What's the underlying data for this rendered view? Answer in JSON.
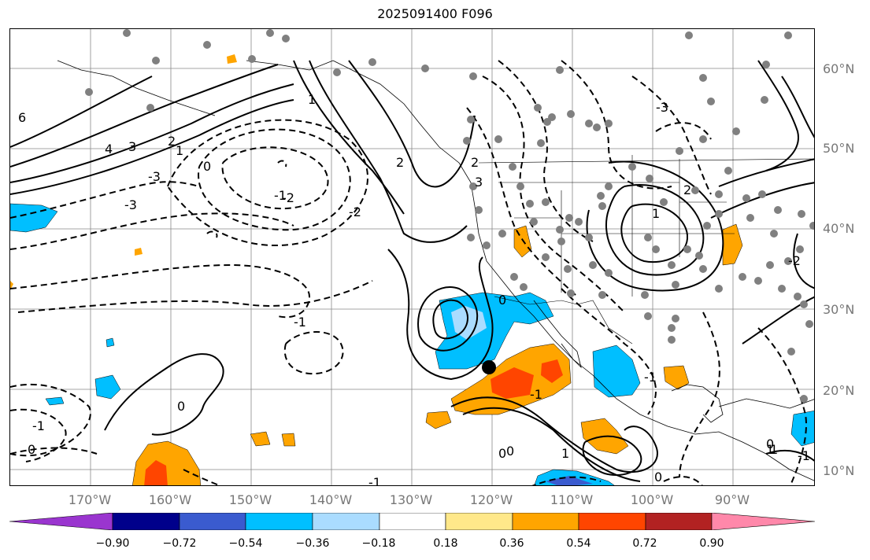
{
  "title": "2025091400 F096",
  "lat_labels": [
    "60°N",
    "50°N",
    "40°N",
    "30°N",
    "20°N",
    "10°N"
  ],
  "lon_labels": [
    "170°W",
    "160°W",
    "150°W",
    "140°W",
    "130°W",
    "120°W",
    "110°W",
    "100°W",
    "90°W"
  ],
  "colorbar": {
    "colors": [
      "#9a35cf",
      "#00008b",
      "#3a5bcf",
      "#00bfff",
      "#aadcff",
      "#ffffff",
      "#ffe88a",
      "#ffa500",
      "#ff4500",
      "#b22222",
      "#ff88aa"
    ],
    "ticks": [
      "−0.90",
      "−0.72",
      "−0.54",
      "−0.36",
      "−0.18",
      "0.18",
      "0.36",
      "0.54",
      "0.72",
      "0.90"
    ]
  },
  "contour_labels": [
    "6",
    "4",
    "3",
    "2",
    "1",
    "0",
    "-1",
    "-2",
    "-3",
    "0",
    "-1",
    "-3",
    "1",
    "2",
    "-2",
    "2",
    "3",
    "-3",
    "1",
    "-1",
    "0",
    "-1",
    "0",
    "0",
    "-1",
    "1",
    "2",
    "0",
    "1",
    "-1",
    "0",
    "-1",
    "-2",
    "0",
    "1"
  ],
  "marker": {
    "label": "storm center",
    "color": "#000000"
  }
}
